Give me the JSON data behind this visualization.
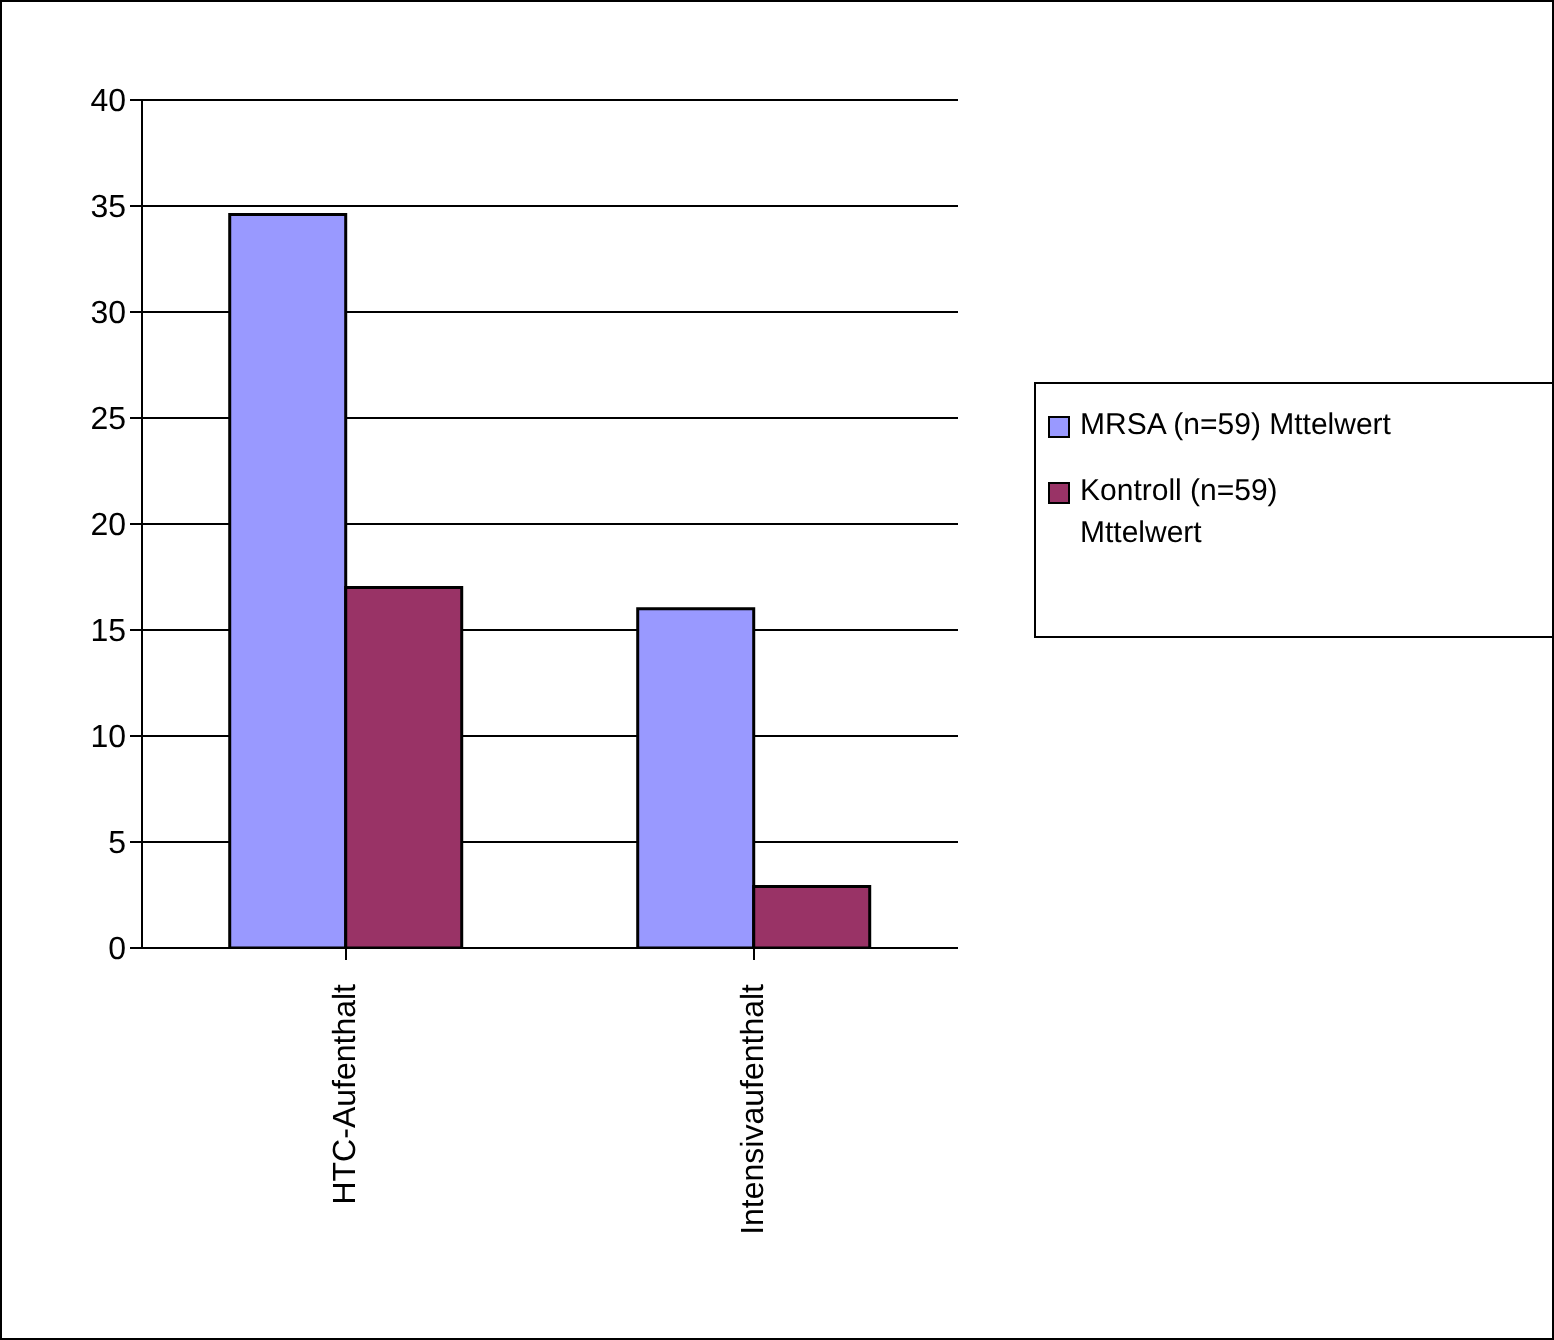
{
  "chart_data": {
    "type": "bar",
    "categories": [
      "HTC-Aufenthalt",
      "Intensivaufenthalt"
    ],
    "series": [
      {
        "name": "MRSA (n=59) Mttelwert",
        "color": "#9999ff",
        "values": [
          34.6,
          16.0
        ]
      },
      {
        "name": "Kontroll (n=59) Mttelwert",
        "color": "#993366",
        "values": [
          17.0,
          2.9
        ]
      }
    ],
    "ylim": [
      0,
      40
    ],
    "yticks": [
      0,
      5,
      10,
      15,
      20,
      25,
      30,
      35,
      40
    ],
    "grid": "y",
    "legend": "right"
  }
}
